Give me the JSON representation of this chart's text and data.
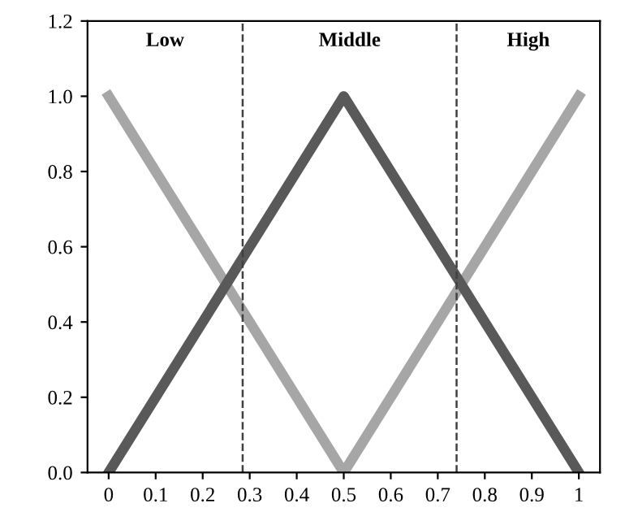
{
  "chart_data": {
    "type": "line",
    "x": [
      0,
      0.5,
      1
    ],
    "series": [
      {
        "color": "#a6a6a6",
        "values": [
          1,
          0,
          1
        ]
      },
      {
        "color": "#595959",
        "values": [
          0,
          1,
          0
        ]
      }
    ],
    "xlim": [
      -0.045,
      1.045
    ],
    "xticks": [
      0,
      0.1,
      0.2,
      0.3,
      0.4,
      0.5,
      0.6,
      0.7,
      0.8,
      0.9,
      1
    ],
    "ylim": [
      0,
      1.2
    ],
    "yticks": [
      {
        "value": 0,
        "label": "0.0"
      },
      {
        "value": 0.2,
        "label": "0.2"
      },
      {
        "value": 0.4,
        "label": "0.4"
      },
      {
        "value": 0.6,
        "label": "0.6"
      },
      {
        "value": 0.8,
        "label": "0.8"
      },
      {
        "value": 1,
        "label": "1.0"
      },
      {
        "value": 1.2,
        "label": "1.2"
      }
    ],
    "ref_lines": [
      {
        "axis": "x",
        "value": 0.285,
        "color": "#404040",
        "line_style": "dashed"
      },
      {
        "axis": "x",
        "value": 0.74,
        "color": "#404040",
        "line_style": "dashed"
      }
    ],
    "annotations": [
      "Low",
      "Middle",
      "High"
    ],
    "grid": false,
    "marker": "none",
    "line_style": "solid"
  }
}
